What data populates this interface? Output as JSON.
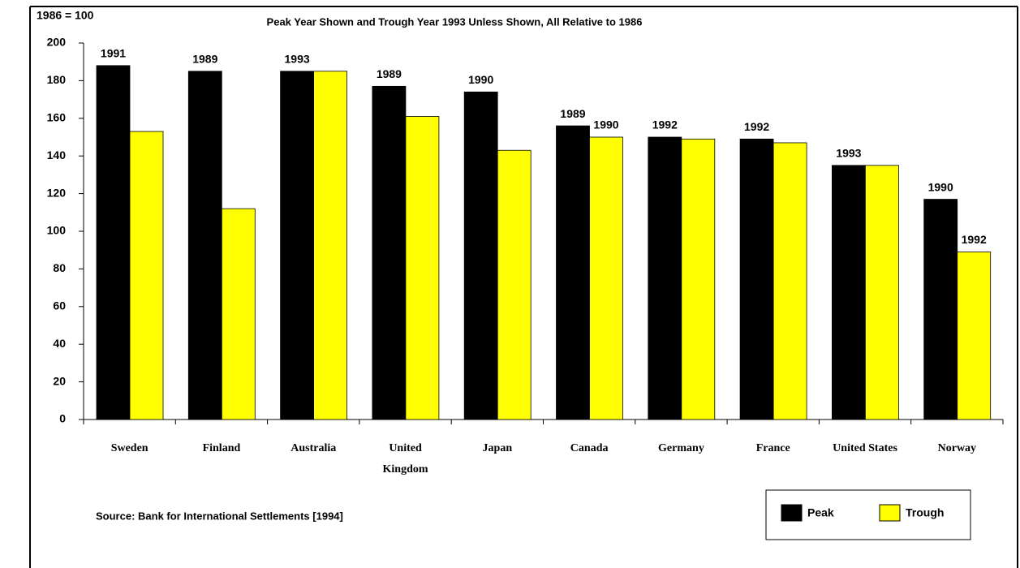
{
  "chart_data": {
    "type": "bar",
    "ylabel": "1986 = 100",
    "subtitle": "Peak Year Shown and Trough Year 1993 Unless Shown, All Relative to 1986",
    "source": "Source: Bank for International Settlements [1994]",
    "categories": [
      "Sweden",
      "Finland",
      "Australia",
      "United Kingdom",
      "Japan",
      "Canada",
      "Germany",
      "France",
      "United States",
      "Norway"
    ],
    "series": [
      {
        "name": "Peak",
        "color": "#000000",
        "values": [
          188,
          185,
          185,
          177,
          174,
          156,
          150,
          149,
          135,
          117
        ],
        "years": [
          "1991",
          "1989",
          "1993",
          "1989",
          "1990",
          "1989",
          "1992",
          "1992",
          "1993",
          "1990"
        ]
      },
      {
        "name": "Trough",
        "color": "#ffff00",
        "values": [
          153,
          112,
          185,
          161,
          143,
          150,
          149,
          147,
          135,
          89
        ],
        "years": [
          null,
          null,
          null,
          null,
          null,
          "1990",
          null,
          null,
          null,
          "1992"
        ]
      }
    ],
    "ylim": [
      0,
      200
    ],
    "yticks": [
      0,
      20,
      40,
      60,
      80,
      100,
      120,
      140,
      160,
      180,
      200
    ]
  }
}
